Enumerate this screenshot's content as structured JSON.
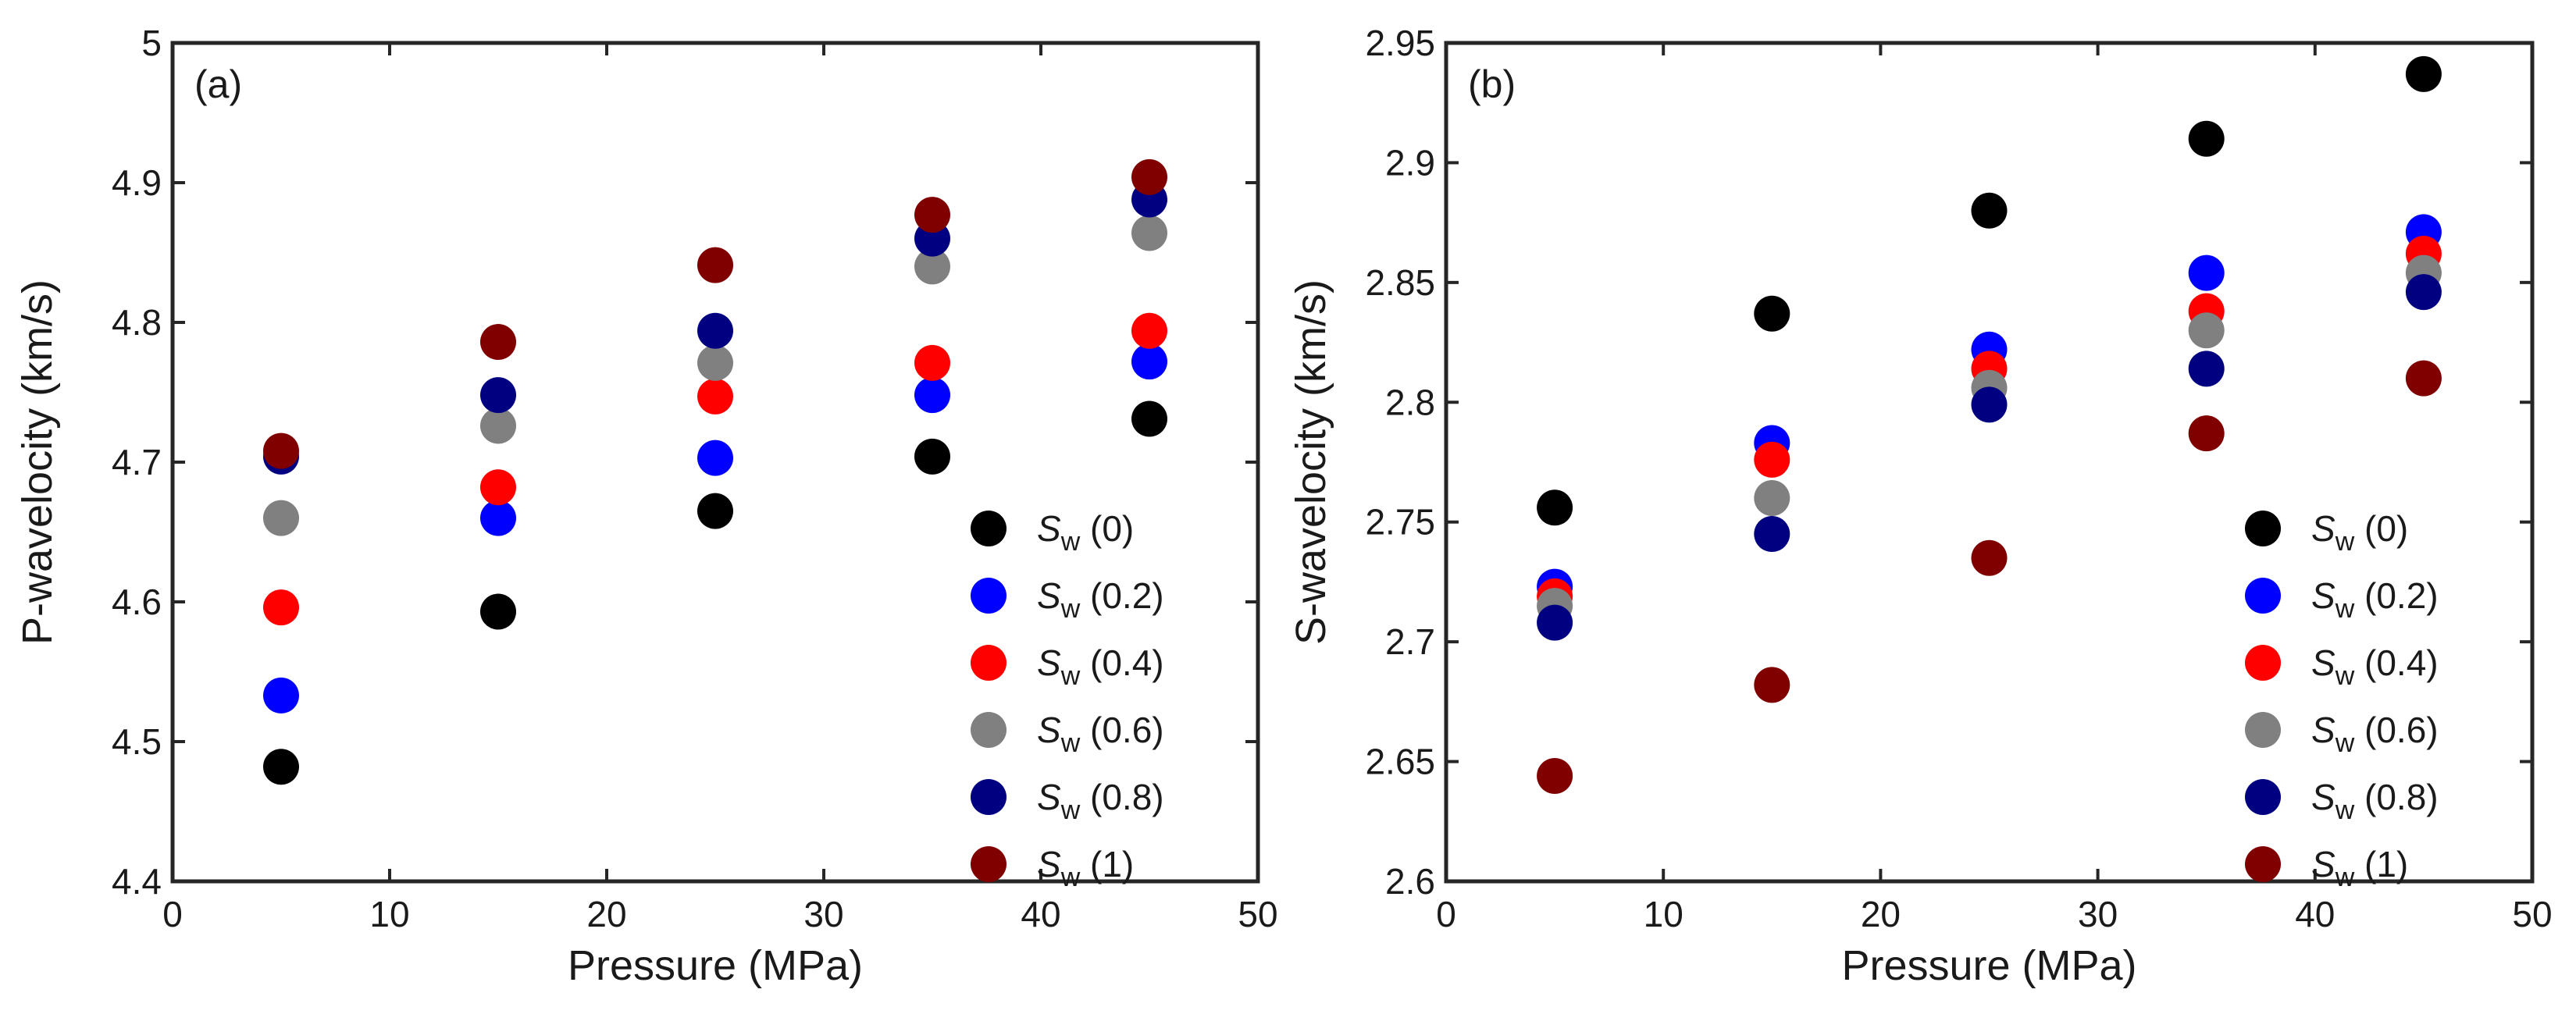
{
  "chart_data": [
    {
      "type": "scatter",
      "panel_label": "(a)",
      "title": "",
      "xlabel": "Pressure (MPa)",
      "ylabel": "P-wavelocity (km/s)",
      "xlim": [
        0,
        50
      ],
      "ylim": [
        4.4,
        5.0
      ],
      "xticks": [
        0,
        10,
        20,
        30,
        40,
        50
      ],
      "xtick_labels": [
        "0",
        "10",
        "20",
        "30",
        "40",
        "50"
      ],
      "yticks": [
        4.4,
        4.5,
        4.6,
        4.7,
        4.8,
        4.9,
        5.0
      ],
      "ytick_labels": [
        "4.4",
        "4.5",
        "4.6",
        "4.7",
        "4.8",
        "4.9",
        "5"
      ],
      "grid": false,
      "legend_position": "bottom-right",
      "x": [
        5,
        15,
        25,
        35,
        45
      ],
      "series": [
        {
          "name": "S_w (0)",
          "symbol": "S",
          "subscript": "w",
          "suffix": " (0)",
          "color": "#000000",
          "values": [
            4.482,
            4.593,
            4.665,
            4.704,
            4.731
          ]
        },
        {
          "name": "S_w (0.2)",
          "symbol": "S",
          "subscript": "w",
          "suffix": " (0.2)",
          "color": "#0000ff",
          "values": [
            4.533,
            4.66,
            4.703,
            4.748,
            4.772
          ]
        },
        {
          "name": "S_w (0.4)",
          "symbol": "S",
          "subscript": "w",
          "suffix": " (0.4)",
          "color": "#ff0000",
          "values": [
            4.596,
            4.682,
            4.747,
            4.771,
            4.794
          ]
        },
        {
          "name": "S_w (0.6)",
          "symbol": "S",
          "subscript": "w",
          "suffix": " (0.6)",
          "color": "#808080",
          "values": [
            4.66,
            4.726,
            4.771,
            4.84,
            4.864
          ]
        },
        {
          "name": "S_w (0.8)",
          "symbol": "S",
          "subscript": "w",
          "suffix": " (0.8)",
          "color": "#000080",
          "values": [
            4.704,
            4.748,
            4.794,
            4.86,
            4.888
          ]
        },
        {
          "name": "S_w (1)",
          "symbol": "S",
          "subscript": "w",
          "suffix": " (1)",
          "color": "#800000",
          "values": [
            4.708,
            4.786,
            4.841,
            4.877,
            4.904
          ]
        }
      ]
    },
    {
      "type": "scatter",
      "panel_label": "(b)",
      "title": "",
      "xlabel": "Pressure (MPa)",
      "ylabel": "S-wavelocity (km/s)",
      "xlim": [
        0,
        50
      ],
      "ylim": [
        2.6,
        2.95
      ],
      "xticks": [
        0,
        10,
        20,
        30,
        40,
        50
      ],
      "xtick_labels": [
        "0",
        "10",
        "20",
        "30",
        "40",
        "50"
      ],
      "yticks": [
        2.6,
        2.65,
        2.7,
        2.75,
        2.8,
        2.85,
        2.9,
        2.95
      ],
      "ytick_labels": [
        "2.6",
        "2.65",
        "2.7",
        "2.75",
        "2.8",
        "2.85",
        "2.9",
        "2.95"
      ],
      "grid": false,
      "legend_position": "bottom-right",
      "x": [
        5,
        15,
        25,
        35,
        45
      ],
      "series": [
        {
          "name": "S_w (0)",
          "symbol": "S",
          "subscript": "w",
          "suffix": " (0)",
          "color": "#000000",
          "values": [
            2.756,
            2.837,
            2.88,
            2.91,
            2.937
          ]
        },
        {
          "name": "S_w (0.2)",
          "symbol": "S",
          "subscript": "w",
          "suffix": " (0.2)",
          "color": "#0000ff",
          "values": [
            2.723,
            2.783,
            2.822,
            2.854,
            2.871
          ]
        },
        {
          "name": "S_w (0.4)",
          "symbol": "S",
          "subscript": "w",
          "suffix": " (0.4)",
          "color": "#ff0000",
          "values": [
            2.719,
            2.776,
            2.814,
            2.838,
            2.862
          ]
        },
        {
          "name": "S_w (0.6)",
          "symbol": "S",
          "subscript": "w",
          "suffix": " (0.6)",
          "color": "#808080",
          "values": [
            2.715,
            2.76,
            2.806,
            2.83,
            2.854
          ]
        },
        {
          "name": "S_w (0.8)",
          "symbol": "S",
          "subscript": "w",
          "suffix": " (0.8)",
          "color": "#000080",
          "values": [
            2.708,
            2.745,
            2.799,
            2.814,
            2.846
          ]
        },
        {
          "name": "S_w (1)",
          "symbol": "S",
          "subscript": "w",
          "suffix": " (1)",
          "color": "#800000",
          "values": [
            2.644,
            2.682,
            2.735,
            2.787,
            2.81
          ]
        }
      ]
    }
  ]
}
